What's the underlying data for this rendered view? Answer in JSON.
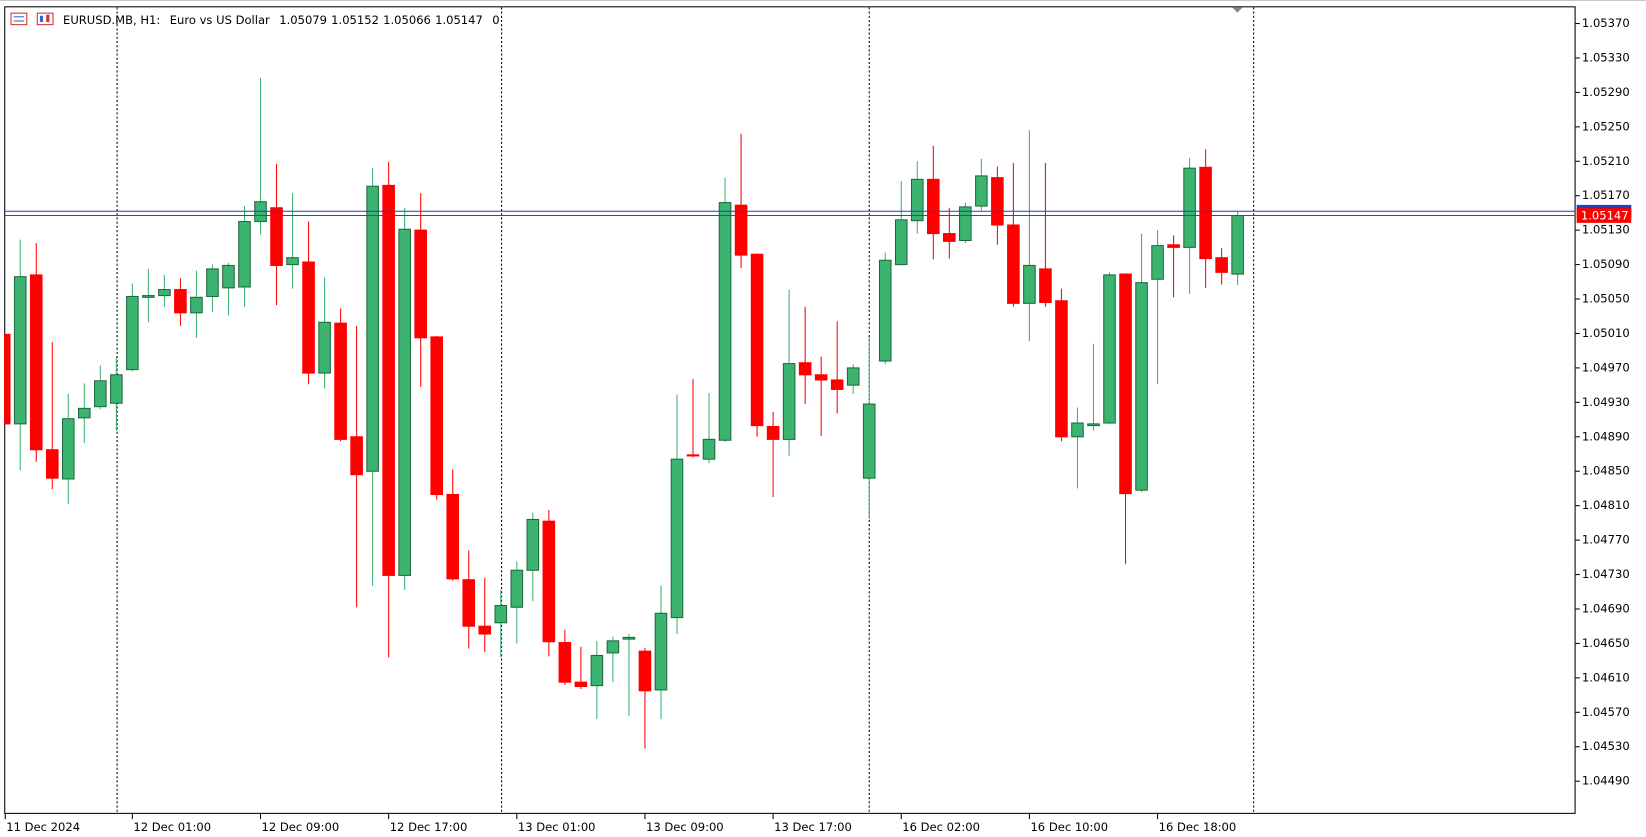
{
  "chart_data": {
    "type": "candlestick",
    "title": "EURUSD.MB, H1:",
    "subtitle": "Euro vs US Dollar",
    "info": 0,
    "up_color": "#3cb371",
    "down_color": "#ff0000",
    "bid_color": "#ff0000",
    "ask_color": "#1f3fbf",
    "ask": 1.05152,
    "categories": [
      "11 Dec 2024",
      null,
      null,
      null,
      null,
      null,
      null,
      null,
      "12 Dec 01:00",
      null,
      null,
      null,
      null,
      null,
      null,
      null,
      "12 Dec 09:00",
      null,
      null,
      null,
      null,
      null,
      null,
      null,
      "12 Dec 17:00",
      null,
      null,
      null,
      null,
      null,
      null,
      null,
      "13 Dec 01:00",
      null,
      null,
      null,
      null,
      null,
      null,
      null,
      "13 Dec 09:00",
      null,
      null,
      null,
      null,
      null,
      null,
      null,
      "13 Dec 17:00",
      null,
      null,
      null,
      null,
      null,
      null,
      null,
      "16 Dec 02:00",
      null,
      null,
      null,
      null,
      null,
      null,
      null,
      "16 Dec 10:00",
      null,
      null,
      null,
      null,
      null,
      null,
      null,
      "16 Dec 18:00",
      null,
      null,
      null,
      null,
      null
    ],
    "open": [
      1.05009,
      1.04905,
      1.05078,
      1.04875,
      1.04841,
      1.04912,
      1.04925,
      1.04929,
      1.04968,
      1.05052,
      1.05054,
      1.05061,
      1.05034,
      1.05053,
      1.05063,
      1.05064,
      1.0514,
      1.05156,
      1.0509,
      1.05093,
      1.04964,
      1.05022,
      1.0489,
      1.0485,
      1.05182,
      1.04729,
      1.0513,
      1.05006,
      1.04823,
      1.04724,
      1.0467,
      1.04674,
      1.04692,
      1.04735,
      1.04792,
      1.04651,
      1.04605,
      1.04601,
      1.04639,
      1.04655,
      1.04641,
      1.04596,
      1.0468,
      1.04869,
      1.04864,
      1.04886,
      1.05159,
      1.05102,
      1.04902,
      1.04887,
      1.04976,
      1.04962,
      1.04956,
      1.0495,
      1.04842,
      1.04978,
      1.0509,
      1.05141,
      1.05189,
      1.05126,
      1.05118,
      1.05158,
      1.05191,
      1.05136,
      1.05045,
      1.05085,
      1.05048,
      1.0489,
      1.04903,
      1.04906,
      1.05079,
      1.04828,
      1.05073,
      1.05113,
      1.0511,
      1.05203,
      1.05098,
      1.05079
    ],
    "high": [
      1.05009,
      1.05119,
      1.05115,
      1.05,
      1.0494,
      1.04952,
      1.04973,
      1.04983,
      1.05068,
      1.05085,
      1.05078,
      1.05074,
      1.05083,
      1.0509,
      1.05092,
      1.05158,
      1.05307,
      1.05207,
      1.05173,
      1.0514,
      1.05075,
      1.05039,
      1.05019,
      1.05202,
      1.05209,
      1.05156,
      1.05173,
      1.05007,
      1.04852,
      1.04758,
      1.04726,
      1.04712,
      1.04745,
      1.04802,
      1.04805,
      1.04666,
      1.04646,
      1.04653,
      1.04658,
      1.04661,
      1.04645,
      1.04717,
      1.04939,
      1.04957,
      1.04941,
      1.05191,
      1.05242,
      1.05103,
      1.04919,
      1.05061,
      1.05041,
      1.04983,
      1.05024,
      1.04974,
      1.05006,
      1.05104,
      1.05187,
      1.0521,
      1.05228,
      1.05156,
      1.05162,
      1.05213,
      1.05204,
      1.05208,
      1.05246,
      1.05208,
      1.05062,
      1.04924,
      1.04998,
      1.05081,
      1.0508,
      1.05126,
      1.0513,
      1.05124,
      1.05214,
      1.05224,
      1.05109,
      1.05152
    ],
    "low": [
      1.04905,
      1.04851,
      1.04861,
      1.04829,
      1.04812,
      1.04883,
      1.04922,
      1.04897,
      1.04966,
      1.05023,
      1.05041,
      1.05019,
      1.05005,
      1.05035,
      1.05031,
      1.05041,
      1.05125,
      1.05043,
      1.05062,
      1.04951,
      1.04946,
      1.04885,
      1.04692,
      1.04717,
      1.04634,
      1.04712,
      1.04948,
      1.04817,
      1.04723,
      1.04644,
      1.0464,
      1.04634,
      1.0465,
      1.04699,
      1.04635,
      1.04602,
      1.04597,
      1.04562,
      1.04605,
      1.04566,
      1.04528,
      1.04562,
      1.04661,
      1.04866,
      1.04859,
      1.04884,
      1.05086,
      1.0489,
      1.0482,
      1.04868,
      1.04928,
      1.04891,
      1.04917,
      1.0494,
      1.04795,
      1.04974,
      1.05089,
      1.05126,
      1.05096,
      1.05097,
      1.05115,
      1.05153,
      1.05113,
      1.05041,
      1.05001,
      1.05041,
      1.04885,
      1.0483,
      1.04897,
      1.04905,
      1.04742,
      1.04826,
      1.04951,
      1.05052,
      1.05056,
      1.05063,
      1.05067,
      1.05066
    ],
    "close": [
      1.04905,
      1.05076,
      1.04875,
      1.04842,
      1.04911,
      1.04923,
      1.04955,
      1.04962,
      1.05053,
      1.05054,
      1.05061,
      1.05034,
      1.05052,
      1.05085,
      1.05089,
      1.0514,
      1.05163,
      1.05089,
      1.05098,
      1.04964,
      1.05023,
      1.04887,
      1.04846,
      1.05181,
      1.04729,
      1.05131,
      1.05005,
      1.04823,
      1.04725,
      1.0467,
      1.04661,
      1.04694,
      1.04735,
      1.04794,
      1.04652,
      1.04605,
      1.046,
      1.04636,
      1.04653,
      1.04657,
      1.04595,
      1.04685,
      1.04864,
      1.04868,
      1.04887,
      1.05162,
      1.05101,
      1.04903,
      1.04887,
      1.04975,
      1.04962,
      1.04956,
      1.04945,
      1.0497,
      1.04928,
      1.05095,
      1.05142,
      1.05189,
      1.05126,
      1.05117,
      1.05157,
      1.05193,
      1.05136,
      1.05045,
      1.05089,
      1.05046,
      1.0489,
      1.04906,
      1.04905,
      1.05078,
      1.04824,
      1.05069,
      1.05112,
      1.0511,
      1.05202,
      1.05097,
      1.05081,
      1.05147
    ],
    "ylim": [
      1.04452,
      1.0539
    ],
    "yticks": [
      {
        "value": 1.0449,
        "label": "1.04490"
      },
      {
        "value": 1.0453,
        "label": "1.04530"
      },
      {
        "value": 1.0457,
        "label": "1.04570"
      },
      {
        "value": 1.0461,
        "label": "1.04610"
      },
      {
        "value": 1.0465,
        "label": "1.04650"
      },
      {
        "value": 1.0469,
        "label": "1.04690"
      },
      {
        "value": 1.0473,
        "label": "1.04730"
      },
      {
        "value": 1.0477,
        "label": "1.04770"
      },
      {
        "value": 1.0481,
        "label": "1.04810"
      },
      {
        "value": 1.0485,
        "label": "1.04850"
      },
      {
        "value": 1.0489,
        "label": "1.04890"
      },
      {
        "value": 1.0493,
        "label": "1.04930"
      },
      {
        "value": 1.0497,
        "label": "1.04970"
      },
      {
        "value": 1.0501,
        "label": "1.05010"
      },
      {
        "value": 1.0505,
        "label": "1.05050"
      },
      {
        "value": 1.0509,
        "label": "1.05090"
      },
      {
        "value": 1.0513,
        "label": "1.05130"
      },
      {
        "value": 1.0517,
        "label": "1.05170"
      },
      {
        "value": 1.0521,
        "label": "1.05210"
      },
      {
        "value": 1.0525,
        "label": "1.05250"
      },
      {
        "value": 1.0529,
        "label": "1.05290"
      },
      {
        "value": 1.0533,
        "label": "1.05330"
      },
      {
        "value": 1.0537,
        "label": "1.05370"
      }
    ],
    "grid": false
  }
}
